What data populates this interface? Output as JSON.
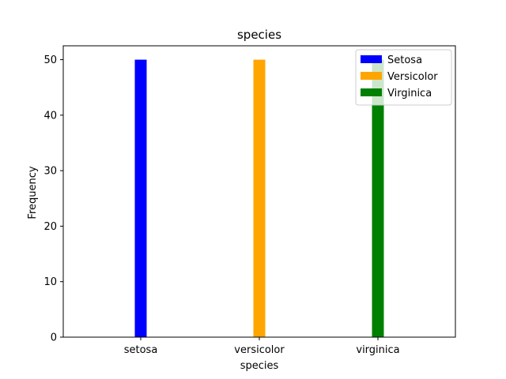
{
  "chart_data": {
    "type": "bar",
    "title": "species",
    "xlabel": "species",
    "ylabel": "Frequency",
    "categories": [
      "setosa",
      "versicolor",
      "virginica"
    ],
    "series": [
      {
        "name": "Setosa",
        "color": "#0000ff",
        "values": [
          50,
          0,
          0
        ]
      },
      {
        "name": "Versicolor",
        "color": "#ffa500",
        "values": [
          0,
          50,
          0
        ]
      },
      {
        "name": "Virginica",
        "color": "#008000",
        "values": [
          0,
          0,
          50
        ]
      }
    ],
    "ylim": [
      0,
      52.5
    ],
    "yticks": [
      0,
      10,
      20,
      30,
      40,
      50
    ],
    "legend_position": "top-right",
    "grid": false
  }
}
